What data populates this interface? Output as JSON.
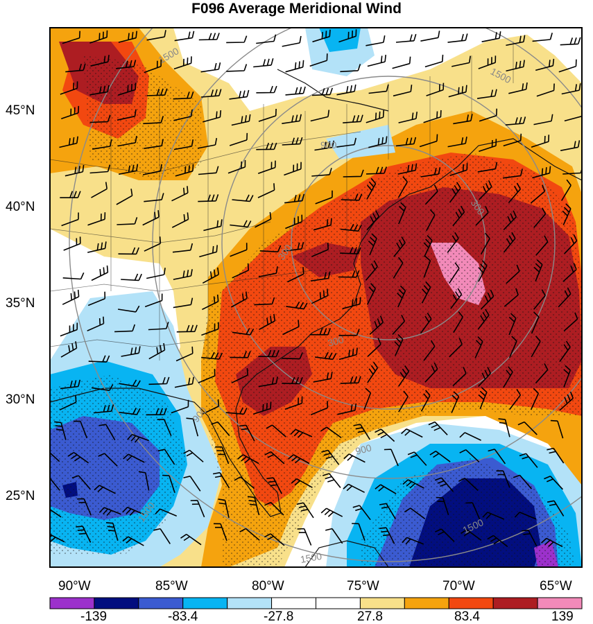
{
  "title": "F096 Average Meridional Wind",
  "lat_labels": [
    "45°N",
    "40°N",
    "35°N",
    "30°N",
    "25°N"
  ],
  "lon_labels": [
    "90°W",
    "85°W",
    "80°W",
    "75°W",
    "70°W",
    "65°W"
  ],
  "contour_labels": [
    "1500",
    "1500",
    "900",
    "300",
    "300",
    "300",
    "900",
    "900",
    "1500",
    "1500",
    "1500"
  ],
  "colorbar": {
    "tick_labels": [
      "-139",
      "-83.4",
      "-27.8",
      "27.8",
      "83.4",
      "139"
    ],
    "colors": [
      "#9c31cc",
      "#020e7f",
      "#3b5bd1",
      "#08b4f2",
      "#b3e2f8",
      "#ffffff",
      "#ffffff",
      "#f8e08a",
      "#f5a30e",
      "#f24810",
      "#ad1d22",
      "#f28ab9"
    ]
  },
  "colors": {
    "purple": "#9c31cc",
    "navy": "#020e7f",
    "royal_blue": "#3b5bd1",
    "cyan": "#08b4f2",
    "light_blue": "#b3e2f8",
    "white": "#ffffff",
    "pale_yellow": "#f8e08a",
    "orange": "#f5a30e",
    "red_orange": "#f24810",
    "dark_red": "#ad1d22",
    "pink": "#f28ab9",
    "range_ring": "#8a8a8a"
  }
}
